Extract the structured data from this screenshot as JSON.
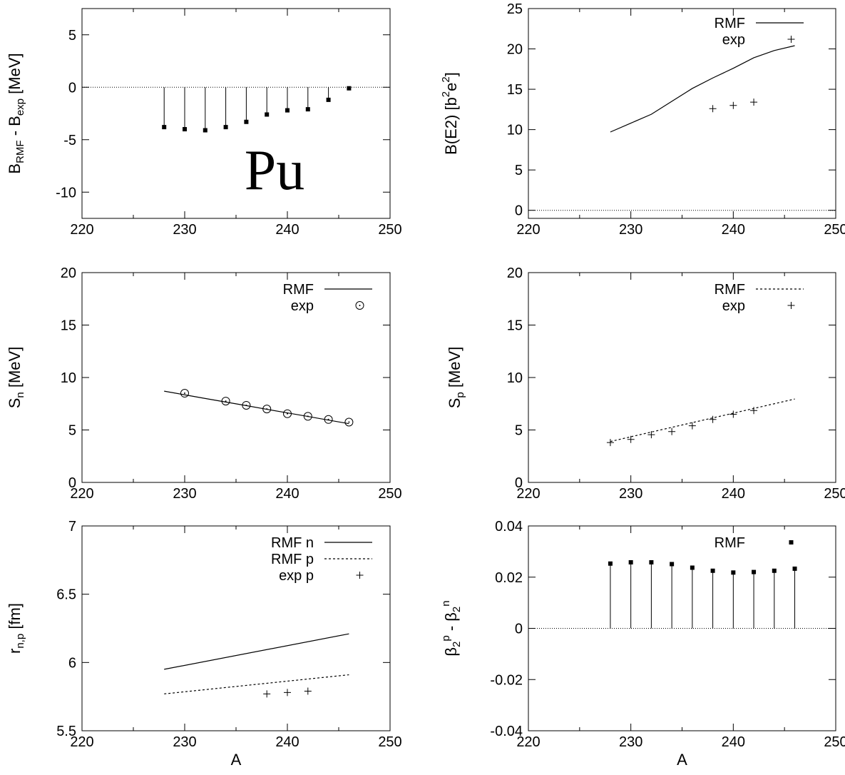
{
  "chart_data": [
    {
      "id": "binding",
      "type": "scatter",
      "style": "impulses",
      "xlabel": "",
      "ylabel": [
        [
          "B",
          ""
        ],
        [
          "RMF",
          "sub"
        ],
        [
          " - B",
          ""
        ],
        [
          "exp",
          "sub"
        ],
        [
          " [MeV]",
          ""
        ]
      ],
      "xlim": [
        220,
        250
      ],
      "ylim": [
        -12.5,
        7.5
      ],
      "xticks": [
        220,
        230,
        240,
        250
      ],
      "yticks": [
        5,
        0,
        -5,
        -10
      ],
      "baseline": 0,
      "annotation": "Pu",
      "series": [
        {
          "kind": "impulse",
          "marker": "square",
          "x": [
            228,
            230,
            232,
            234,
            236,
            238,
            240,
            242,
            244,
            246
          ],
          "y": [
            -3.8,
            -4.0,
            -4.1,
            -3.8,
            -3.3,
            -2.6,
            -2.2,
            -2.1,
            -1.2,
            -0.1
          ]
        }
      ],
      "legend": []
    },
    {
      "id": "be2",
      "type": "line",
      "xlabel": "",
      "ylabel": [
        [
          "B(E2) [b",
          ""
        ],
        [
          "2",
          "sup"
        ],
        [
          "e",
          ""
        ],
        [
          "2",
          "sup"
        ],
        [
          "]",
          ""
        ]
      ],
      "xlim": [
        220,
        250
      ],
      "ylim": [
        -1,
        25
      ],
      "xticks": [
        220,
        230,
        240,
        250
      ],
      "yticks": [
        0,
        5,
        10,
        15,
        20,
        25
      ],
      "baseline": 0,
      "series": [
        {
          "name": "RMF",
          "kind": "line",
          "dash": "solid",
          "x": [
            228,
            230,
            232,
            234,
            236,
            238,
            240,
            242,
            244,
            246
          ],
          "y": [
            9.7,
            10.8,
            11.9,
            13.5,
            15.1,
            16.4,
            17.6,
            18.9,
            19.8,
            20.4
          ]
        },
        {
          "name": "exp",
          "kind": "points",
          "marker": "plus",
          "x": [
            238,
            240,
            242
          ],
          "y": [
            12.6,
            13.0,
            13.4
          ]
        }
      ],
      "legend": [
        {
          "label": "RMF",
          "kind": "line",
          "dash": "solid"
        },
        {
          "label": "exp",
          "kind": "points",
          "marker": "plus"
        }
      ]
    },
    {
      "id": "sn",
      "type": "line",
      "xlabel": "",
      "ylabel": [
        [
          "S",
          ""
        ],
        [
          "n",
          "sub"
        ],
        [
          " [MeV]",
          ""
        ]
      ],
      "xlim": [
        220,
        250
      ],
      "ylim": [
        0,
        20
      ],
      "xticks": [
        220,
        230,
        240,
        250
      ],
      "yticks": [
        0,
        5,
        10,
        15,
        20
      ],
      "series": [
        {
          "name": "RMF",
          "kind": "line",
          "dash": "solid",
          "x": [
            228,
            230,
            232,
            234,
            236,
            238,
            240,
            242,
            244,
            246
          ],
          "y": [
            8.7,
            8.35,
            8.0,
            7.66,
            7.32,
            6.97,
            6.63,
            6.29,
            5.94,
            5.6
          ]
        },
        {
          "name": "exp",
          "kind": "points",
          "marker": "circle",
          "x": [
            230,
            234,
            236,
            238,
            240,
            242,
            244,
            246
          ],
          "y": [
            8.5,
            7.75,
            7.35,
            7.0,
            6.55,
            6.3,
            6.0,
            5.75
          ]
        }
      ],
      "legend": [
        {
          "label": "RMF",
          "kind": "line",
          "dash": "solid"
        },
        {
          "label": "exp",
          "kind": "points",
          "marker": "circle"
        }
      ]
    },
    {
      "id": "sp",
      "type": "line",
      "xlabel": "",
      "ylabel": [
        [
          "S",
          ""
        ],
        [
          "p",
          "sub"
        ],
        [
          " [MeV]",
          ""
        ]
      ],
      "xlim": [
        220,
        250
      ],
      "ylim": [
        0,
        20
      ],
      "xticks": [
        220,
        230,
        240,
        250
      ],
      "yticks": [
        0,
        5,
        10,
        15,
        20
      ],
      "series": [
        {
          "name": "RMF",
          "kind": "line",
          "dash": "dashed",
          "x": [
            228,
            230,
            232,
            234,
            236,
            238,
            240,
            242,
            244,
            246
          ],
          "y": [
            3.9,
            4.35,
            4.8,
            5.25,
            5.7,
            6.15,
            6.6,
            7.05,
            7.5,
            7.95
          ]
        },
        {
          "name": "exp",
          "kind": "points",
          "marker": "plus",
          "x": [
            228,
            230,
            232,
            234,
            236,
            238,
            240,
            242
          ],
          "y": [
            3.8,
            4.1,
            4.55,
            4.85,
            5.4,
            6.0,
            6.5,
            6.85
          ]
        }
      ],
      "legend": [
        {
          "label": "RMF",
          "kind": "line",
          "dash": "dashed"
        },
        {
          "label": "exp",
          "kind": "points",
          "marker": "plus"
        }
      ]
    },
    {
      "id": "radii",
      "type": "line",
      "xlabel": "A",
      "ylabel": [
        [
          "r",
          ""
        ],
        [
          "n,p",
          "sub"
        ],
        [
          " [fm]",
          ""
        ]
      ],
      "xlim": [
        220,
        250
      ],
      "ylim": [
        5.5,
        7.0
      ],
      "xticks": [
        220,
        230,
        240,
        250
      ],
      "yticks": [
        5.5,
        6,
        6.5,
        7
      ],
      "series": [
        {
          "name": "RMF n",
          "kind": "line",
          "dash": "solid",
          "x": [
            228,
            246
          ],
          "y": [
            5.95,
            6.21
          ]
        },
        {
          "name": "RMF p",
          "kind": "line",
          "dash": "dashed",
          "x": [
            228,
            246
          ],
          "y": [
            5.77,
            5.91
          ]
        },
        {
          "name": "exp p",
          "kind": "points",
          "marker": "plus",
          "x": [
            238,
            240,
            242
          ],
          "y": [
            5.77,
            5.78,
            5.79
          ]
        }
      ],
      "legend": [
        {
          "label": "RMF n",
          "kind": "line",
          "dash": "solid"
        },
        {
          "label": "RMF p",
          "kind": "line",
          "dash": "dashed"
        },
        {
          "label": "exp p",
          "kind": "points",
          "marker": "plus"
        }
      ]
    },
    {
      "id": "beta",
      "type": "scatter",
      "style": "impulses",
      "xlabel": "A",
      "ylabel": [
        [
          "β",
          ""
        ],
        [
          "2",
          "sub"
        ],
        [
          "p",
          "sup"
        ],
        [
          " - β",
          ""
        ],
        [
          "2",
          "sub"
        ],
        [
          "n",
          "sup"
        ]
      ],
      "xlim": [
        220,
        250
      ],
      "ylim": [
        -0.04,
        0.04
      ],
      "xticks": [
        220,
        230,
        240,
        250
      ],
      "yticks": [
        -0.04,
        -0.02,
        0,
        0.02,
        0.04
      ],
      "baseline": 0,
      "series": [
        {
          "name": "RMF",
          "kind": "impulse",
          "marker": "square",
          "x": [
            228,
            230,
            232,
            234,
            236,
            238,
            240,
            242,
            244,
            246
          ],
          "y": [
            0.0253,
            0.0258,
            0.0258,
            0.0251,
            0.0237,
            0.0225,
            0.0218,
            0.022,
            0.0225,
            0.0233
          ]
        }
      ],
      "legend": [
        {
          "label": "RMF",
          "kind": "points",
          "marker": "square"
        }
      ]
    }
  ]
}
